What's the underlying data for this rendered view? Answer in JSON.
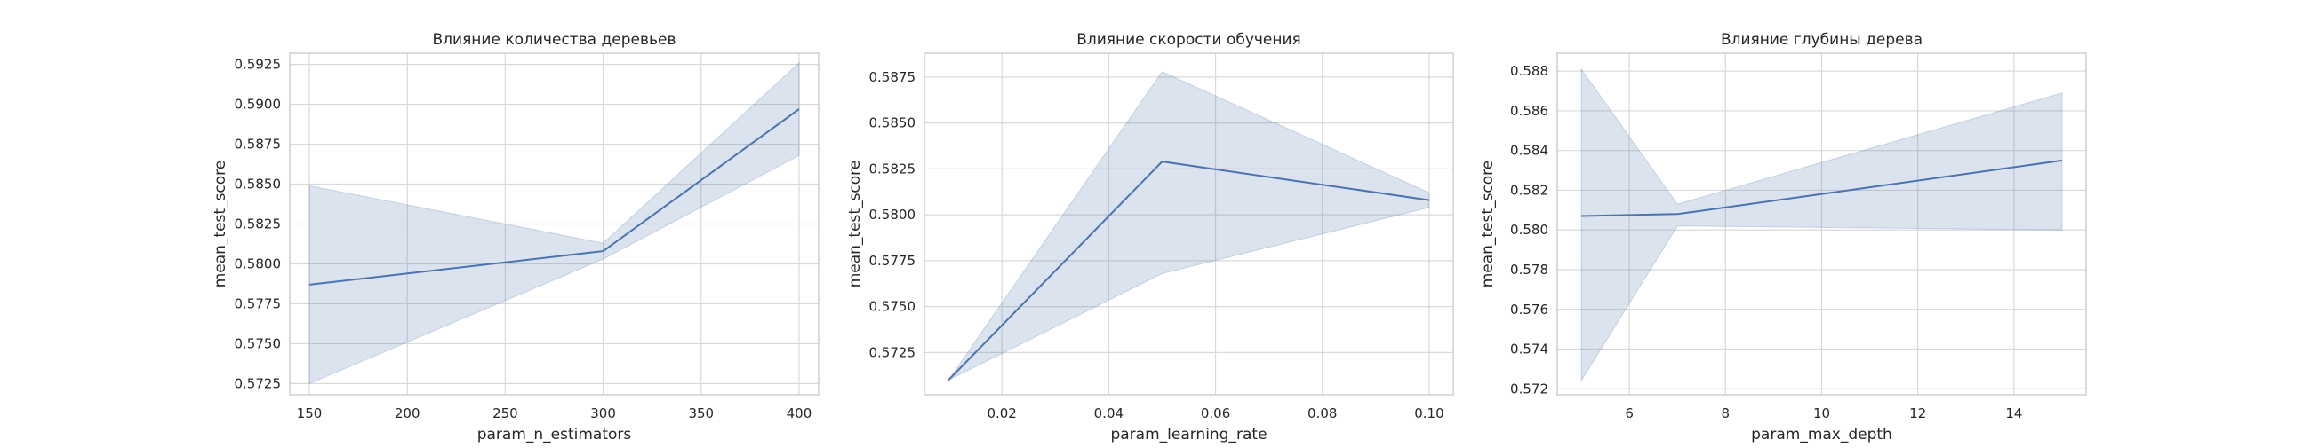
{
  "colors": {
    "line": "#4c72b0",
    "grid": "#d9d9d9",
    "frame": "#cccccc"
  },
  "chart_data": [
    {
      "type": "line",
      "title": "Влияние количества деревьев",
      "xlabel": "param_n_estimators",
      "ylabel": "mean_test_score",
      "xlim": [
        140,
        410
      ],
      "ylim": [
        0.5718,
        0.5932
      ],
      "xticks": [
        150,
        200,
        250,
        300,
        350,
        400
      ],
      "yticks": [
        0.5725,
        0.575,
        0.5775,
        0.58,
        0.5825,
        0.585,
        0.5875,
        0.59,
        0.5925
      ],
      "xtick_labels": [
        "150",
        "200",
        "250",
        "300",
        "350",
        "400"
      ],
      "ytick_labels": [
        "0.5725",
        "0.5750",
        "0.5775",
        "0.5800",
        "0.5825",
        "0.5850",
        "0.5875",
        "0.5900",
        "0.5925"
      ],
      "x": [
        150,
        300,
        400
      ],
      "y": [
        0.5787,
        0.5808,
        0.5897
      ],
      "ci_lower": [
        0.5725,
        0.5803,
        0.5868
      ],
      "ci_upper": [
        0.5849,
        0.5813,
        0.5926
      ],
      "grid": true
    },
    {
      "type": "line",
      "title": "Влияние скорости обучения",
      "xlabel": "param_learning_rate",
      "ylabel": "mean_test_score",
      "xlim": [
        0.0055,
        0.1045
      ],
      "ylim": [
        0.5702,
        0.5888
      ],
      "xticks": [
        0.02,
        0.04,
        0.06,
        0.08,
        0.1
      ],
      "yticks": [
        0.5725,
        0.575,
        0.5775,
        0.58,
        0.5825,
        0.585,
        0.5875
      ],
      "xtick_labels": [
        "0.02",
        "0.04",
        "0.06",
        "0.08",
        "0.10"
      ],
      "ytick_labels": [
        "0.5725",
        "0.5750",
        "0.5775",
        "0.5800",
        "0.5825",
        "0.5850",
        "0.5875"
      ],
      "x": [
        0.01,
        0.05,
        0.1
      ],
      "y": [
        0.571,
        0.5829,
        0.5808
      ],
      "ci_lower": [
        0.571,
        0.5768,
        0.5804
      ],
      "ci_upper": [
        0.571,
        0.5878,
        0.5812
      ],
      "grid": true
    },
    {
      "type": "line",
      "title": "Влияние глубины дерева",
      "xlabel": "param_max_depth",
      "ylabel": "mean_test_score",
      "xlim": [
        4.5,
        15.5
      ],
      "ylim": [
        0.5717,
        0.5889
      ],
      "xticks": [
        6,
        8,
        10,
        12,
        14
      ],
      "yticks": [
        0.572,
        0.574,
        0.576,
        0.578,
        0.58,
        0.582,
        0.584,
        0.586,
        0.588
      ],
      "xtick_labels": [
        "6",
        "8",
        "10",
        "12",
        "14"
      ],
      "ytick_labels": [
        "0.572",
        "0.574",
        "0.576",
        "0.578",
        "0.580",
        "0.582",
        "0.584",
        "0.586",
        "0.588"
      ],
      "x": [
        5,
        7,
        15
      ],
      "y": [
        0.5807,
        0.5808,
        0.5835
      ],
      "ci_lower": [
        0.5724,
        0.5802,
        0.58
      ],
      "ci_upper": [
        0.5881,
        0.5813,
        0.5869
      ],
      "grid": true
    }
  ]
}
